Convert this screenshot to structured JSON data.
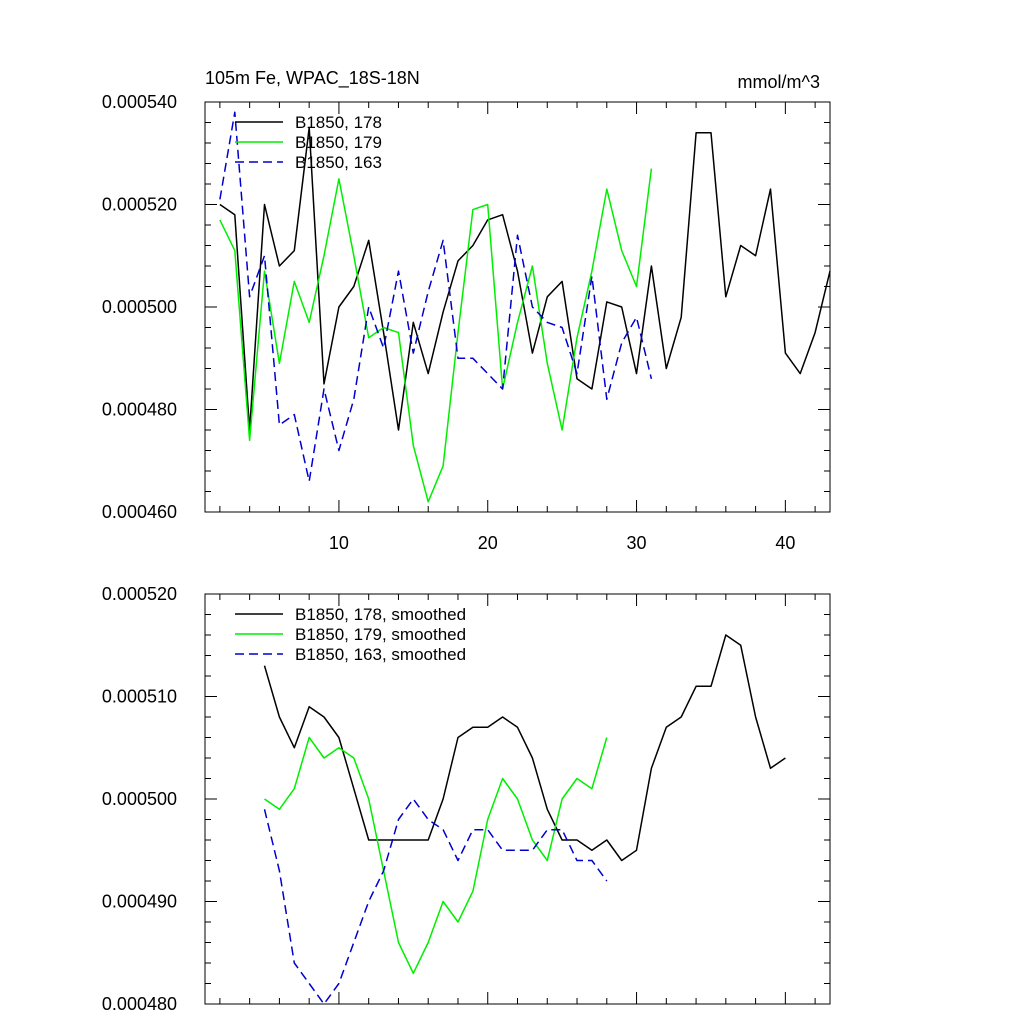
{
  "chart_data": [
    {
      "type": "line",
      "title": "105m Fe, WPAC_18S-18N",
      "units": "mmol/m^3",
      "ylim": [
        0.00046,
        0.00054
      ],
      "xlim": [
        1,
        43
      ],
      "yticks": [
        0.00046,
        0.00048,
        0.0005,
        0.00052,
        0.00054
      ],
      "ytick_labels": [
        "0.000460",
        "0.000480",
        "0.000500",
        "0.000520",
        "0.000540"
      ],
      "xticks": [
        10,
        20,
        30,
        40
      ],
      "xtick_labels": [
        "10",
        "20",
        "30",
        "40"
      ],
      "legend": "top-left",
      "series": [
        {
          "name": "B1850, 178",
          "color": "#000000",
          "dash": "solid",
          "x": [
            2,
            3,
            4,
            5,
            6,
            7,
            8,
            9,
            10,
            11,
            12,
            13,
            14,
            15,
            16,
            17,
            18,
            19,
            20,
            21,
            22,
            23,
            24,
            25,
            26,
            27,
            28,
            29,
            30,
            31,
            32,
            33,
            34,
            35,
            36,
            37,
            38,
            39,
            40,
            41,
            42,
            43
          ],
          "values": [
            0.00052,
            0.000518,
            0.000476,
            0.00052,
            0.000508,
            0.000511,
            0.000535,
            0.000485,
            0.0005,
            0.000504,
            0.000513,
            0.000495,
            0.000476,
            0.000497,
            0.000487,
            0.000499,
            0.000509,
            0.000512,
            0.000517,
            0.000518,
            0.000507,
            0.000491,
            0.000502,
            0.000505,
            0.000486,
            0.000484,
            0.000501,
            0.0005,
            0.000487,
            0.000508,
            0.000488,
            0.000498,
            0.000534,
            0.000534,
            0.000502,
            0.000512,
            0.00051,
            0.000523,
            0.000491,
            0.000487,
            0.000495,
            0.000507
          ]
        },
        {
          "name": "B1850, 179",
          "color": "#00ee00",
          "dash": "solid",
          "x": [
            2,
            3,
            4,
            5,
            6,
            7,
            8,
            9,
            10,
            11,
            12,
            13,
            14,
            15,
            16,
            17,
            18,
            19,
            20,
            21,
            22,
            23,
            24,
            25,
            26,
            27,
            28,
            29,
            30,
            31
          ],
          "values": [
            0.000517,
            0.000511,
            0.000474,
            0.000507,
            0.000489,
            0.000505,
            0.000497,
            0.00051,
            0.000525,
            0.00051,
            0.000494,
            0.000496,
            0.000495,
            0.000473,
            0.000462,
            0.000469,
            0.000495,
            0.000519,
            0.00052,
            0.000484,
            0.000497,
            0.000508,
            0.000489,
            0.000476,
            0.000494,
            0.000507,
            0.000523,
            0.000511,
            0.000504,
            0.000527
          ]
        },
        {
          "name": "B1850, 163",
          "color": "#0000cc",
          "dash": "dashed",
          "x": [
            2,
            3,
            4,
            5,
            6,
            7,
            8,
            9,
            10,
            11,
            12,
            13,
            14,
            15,
            16,
            17,
            18,
            19,
            20,
            21,
            22,
            23,
            24,
            25,
            26,
            27,
            28,
            29,
            30,
            31
          ],
          "values": [
            0.000521,
            0.000538,
            0.000502,
            0.00051,
            0.000477,
            0.000479,
            0.000466,
            0.000484,
            0.000472,
            0.000482,
            0.0005,
            0.000492,
            0.000507,
            0.000491,
            0.000503,
            0.000513,
            0.00049,
            0.00049,
            0.000487,
            0.000484,
            0.000514,
            0.0005,
            0.000497,
            0.000496,
            0.000487,
            0.000506,
            0.000482,
            0.000493,
            0.000498,
            0.000486
          ]
        }
      ]
    },
    {
      "type": "line",
      "ylim": [
        0.00048,
        0.00052
      ],
      "xlim": [
        1,
        43
      ],
      "yticks": [
        0.00048,
        0.00049,
        0.0005,
        0.00051,
        0.00052
      ],
      "ytick_labels": [
        "0.000480",
        "0.000490",
        "0.000500",
        "0.000510",
        "0.000520"
      ],
      "xticks": [
        10,
        20,
        30,
        40
      ],
      "legend": "top-left",
      "series": [
        {
          "name": "B1850, 178, smoothed",
          "color": "#000000",
          "dash": "solid",
          "x": [
            5,
            6,
            7,
            8,
            9,
            10,
            11,
            12,
            13,
            14,
            15,
            16,
            17,
            18,
            19,
            20,
            21,
            22,
            23,
            24,
            25,
            26,
            27,
            28,
            29,
            30,
            31,
            32,
            33,
            34,
            35,
            36,
            37,
            38,
            39,
            40
          ],
          "values": [
            0.000513,
            0.000508,
            0.000505,
            0.000509,
            0.000508,
            0.000506,
            0.000501,
            0.000496,
            0.000496,
            0.000496,
            0.000496,
            0.000496,
            0.0005,
            0.000506,
            0.000507,
            0.000507,
            0.000508,
            0.000507,
            0.000504,
            0.000499,
            0.000496,
            0.000496,
            0.000495,
            0.000496,
            0.000494,
            0.000495,
            0.000503,
            0.000507,
            0.000508,
            0.000511,
            0.000511,
            0.000516,
            0.000515,
            0.000508,
            0.000503,
            0.000504
          ]
        },
        {
          "name": "B1850, 179, smoothed",
          "color": "#00ee00",
          "dash": "solid",
          "x": [
            5,
            6,
            7,
            8,
            9,
            10,
            11,
            12,
            13,
            14,
            15,
            16,
            17,
            18,
            19,
            20,
            21,
            22,
            23,
            24,
            25,
            26,
            27,
            28
          ],
          "values": [
            0.0005,
            0.000499,
            0.000501,
            0.000506,
            0.000504,
            0.000505,
            0.000504,
            0.0005,
            0.000493,
            0.000486,
            0.000483,
            0.000486,
            0.00049,
            0.000488,
            0.000491,
            0.000498,
            0.000502,
            0.0005,
            0.000496,
            0.000494,
            0.0005,
            0.000502,
            0.000501,
            0.000506
          ]
        },
        {
          "name": "B1850, 163, smoothed",
          "color": "#0000cc",
          "dash": "dashed",
          "x": [
            5,
            6,
            7,
            8,
            9,
            10,
            11,
            12,
            13,
            14,
            15,
            16,
            17,
            18,
            19,
            20,
            21,
            22,
            23,
            24,
            25,
            26,
            27,
            28
          ],
          "values": [
            0.000499,
            0.000493,
            0.000484,
            0.000482,
            0.00048,
            0.000482,
            0.000486,
            0.00049,
            0.000493,
            0.000498,
            0.0005,
            0.000498,
            0.000497,
            0.000494,
            0.000497,
            0.000497,
            0.000495,
            0.000495,
            0.000495,
            0.000497,
            0.000497,
            0.000494,
            0.000494,
            0.000492
          ]
        }
      ]
    }
  ]
}
